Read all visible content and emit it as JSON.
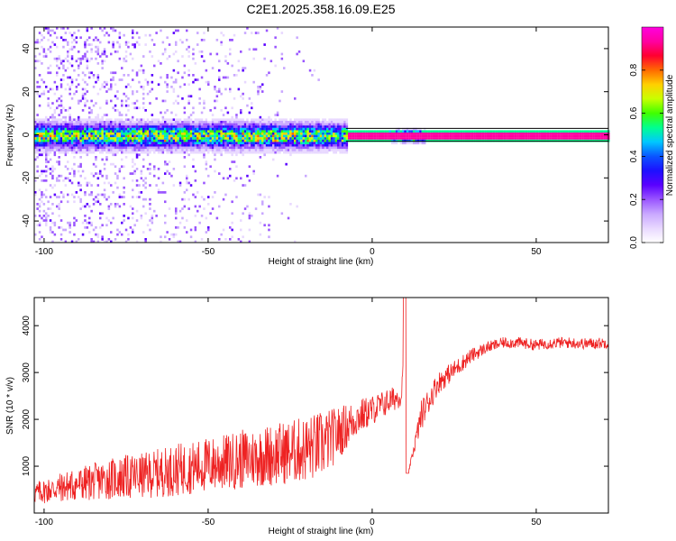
{
  "title": "C2E1.2025.358.16.09.E25",
  "colors": {
    "snr_line": "#ee2222",
    "background": "#ffffff",
    "axis": "#000000",
    "colormap": [
      "#ffffff",
      "#e8d8ff",
      "#c9a8ff",
      "#9a55ff",
      "#5a00ff",
      "#1d10ff",
      "#0a55ff",
      "#00c8ff",
      "#00ff90",
      "#40ff00",
      "#c8ff00",
      "#ffd000",
      "#ff6a00",
      "#ff0030",
      "#ff00a0",
      "#ff00e0"
    ]
  },
  "chart_data": [
    {
      "id": "spectrogram",
      "type": "heatmap",
      "xlabel": "Height of straight line (km)",
      "ylabel": "Frequency (Hz)",
      "xlim": [
        -103,
        72
      ],
      "ylim": [
        -50,
        50
      ],
      "xticks": [
        "-100",
        "-50",
        "0",
        "50"
      ],
      "xtick_values": [
        -100,
        -50,
        0,
        50
      ],
      "yticks": [
        "-40",
        "-20",
        "0",
        "20",
        "40"
      ],
      "ytick_values": [
        -40,
        -20,
        0,
        20,
        40
      ],
      "colorbar": {
        "label": "Normalized spectral amplitude",
        "range": [
          0.0,
          1.0
        ],
        "ticks": [
          "0.0",
          "0.2",
          "0.4",
          "0.6",
          "0.8"
        ],
        "tick_values": [
          0.0,
          0.2,
          0.4,
          0.6,
          0.8
        ]
      },
      "description_of_signal": {
        "center_frequency_hz": 0,
        "band_halfwidth_hz": 3,
        "strong_continuous_from_km": -8,
        "strong_continuous_to_km": 72,
        "noisy_from_km": -103,
        "noisy_to_km": -8
      }
    },
    {
      "id": "snr",
      "type": "line",
      "xlabel": "Height of straight line (km)",
      "ylabel": "SNR (10 * v/v)",
      "xlim": [
        -103,
        72
      ],
      "ylim": [
        0,
        4600
      ],
      "xticks": [
        "-100",
        "-50",
        "0",
        "50"
      ],
      "xtick_values": [
        -100,
        -50,
        0,
        50
      ],
      "yticks": [
        "1000",
        "2000",
        "3000",
        "4000"
      ],
      "ytick_values": [
        1000,
        2000,
        3000,
        4000
      ],
      "series": [
        {
          "name": "SNR",
          "x": [
            -103,
            -95,
            -90,
            -85,
            -80,
            -75,
            -70,
            -65,
            -60,
            -55,
            -50,
            -45,
            -40,
            -35,
            -30,
            -25,
            -20,
            -15,
            -10,
            -5,
            0,
            5,
            9,
            10,
            11,
            15,
            20,
            25,
            30,
            35,
            40,
            45,
            50,
            55,
            60,
            65,
            72
          ],
          "values": [
            350,
            450,
            500,
            550,
            600,
            620,
            650,
            700,
            750,
            800,
            850,
            900,
            950,
            1000,
            1050,
            1100,
            1150,
            1250,
            1550,
            1900,
            2100,
            2300,
            2450,
            4600,
            850,
            2000,
            2700,
            3000,
            3300,
            3500,
            3600,
            3600,
            3550,
            3600,
            3600,
            3580,
            3600
          ],
          "noise_amplitude_hint": [
            300,
            400,
            450,
            500,
            550,
            600,
            600,
            650,
            700,
            700,
            750,
            750,
            800,
            800,
            850,
            850,
            900,
            900,
            700,
            500,
            400,
            350,
            300,
            0,
            0,
            400,
            300,
            250,
            200,
            150,
            150,
            150,
            150,
            150,
            150,
            150,
            150
          ]
        }
      ]
    }
  ]
}
